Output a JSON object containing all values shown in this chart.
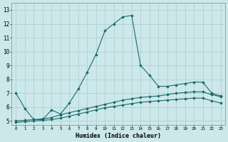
{
  "xlabel": "Humidex (Indice chaleur)",
  "background_color": "#cce8ea",
  "grid_color": "#aacccc",
  "line_color": "#1a6b6b",
  "xlim": [
    -0.5,
    23.5
  ],
  "ylim": [
    4.7,
    13.5
  ],
  "xticks": [
    0,
    1,
    2,
    3,
    4,
    5,
    6,
    7,
    8,
    9,
    10,
    11,
    12,
    13,
    14,
    15,
    16,
    17,
    18,
    19,
    20,
    21,
    22,
    23
  ],
  "yticks": [
    5,
    6,
    7,
    8,
    9,
    10,
    11,
    12,
    13
  ],
  "series1_x": [
    0,
    1,
    2,
    3,
    4,
    5,
    6,
    7,
    8,
    9,
    10,
    11,
    12,
    13,
    14,
    15,
    16,
    17,
    18,
    19,
    20,
    21,
    22,
    23
  ],
  "series1_y": [
    7.0,
    5.9,
    5.1,
    5.1,
    5.8,
    5.5,
    6.3,
    7.3,
    8.5,
    9.8,
    11.5,
    12.0,
    12.5,
    12.6,
    9.0,
    8.3,
    7.5,
    7.5,
    7.6,
    7.7,
    7.8,
    7.8,
    7.0,
    6.8
  ],
  "series2_x": [
    0,
    1,
    2,
    3,
    4,
    5,
    6,
    7,
    8,
    9,
    10,
    11,
    12,
    13,
    14,
    15,
    16,
    17,
    18,
    19,
    20,
    21,
    22,
    23
  ],
  "series2_y": [
    5.0,
    5.05,
    5.1,
    5.15,
    5.25,
    5.45,
    5.6,
    5.75,
    5.9,
    6.05,
    6.2,
    6.35,
    6.5,
    6.6,
    6.7,
    6.75,
    6.8,
    6.9,
    7.0,
    7.05,
    7.1,
    7.1,
    6.9,
    6.75
  ],
  "series3_x": [
    0,
    1,
    2,
    3,
    4,
    5,
    6,
    7,
    8,
    9,
    10,
    11,
    12,
    13,
    14,
    15,
    16,
    17,
    18,
    19,
    20,
    21,
    22,
    23
  ],
  "series3_y": [
    4.9,
    4.95,
    5.0,
    5.05,
    5.1,
    5.2,
    5.35,
    5.5,
    5.65,
    5.8,
    5.95,
    6.05,
    6.15,
    6.25,
    6.35,
    6.4,
    6.45,
    6.5,
    6.55,
    6.6,
    6.65,
    6.65,
    6.45,
    6.3
  ]
}
